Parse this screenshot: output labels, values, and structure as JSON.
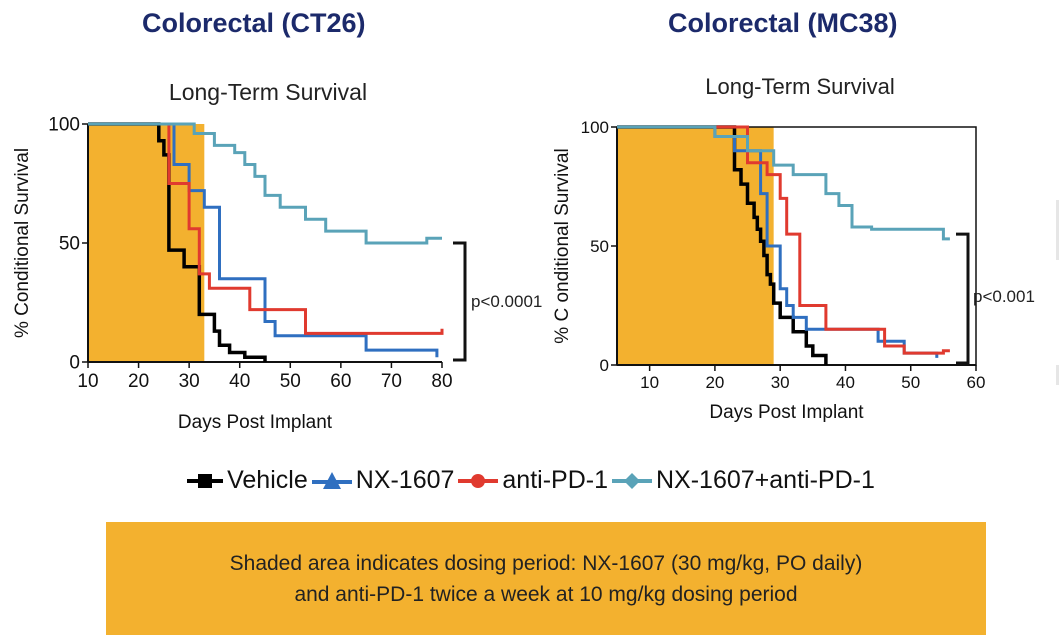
{
  "colors": {
    "title": "#1c2a6b",
    "shade": "#f3b12f",
    "vehicle": "#000000",
    "nx1607": "#2f6fc0",
    "antipd1": "#e03a2f",
    "combo": "#5aa3b8"
  },
  "legend": {
    "items": [
      {
        "label": "Vehicle",
        "marker": "square",
        "color": "#000000"
      },
      {
        "label": "NX-1607",
        "marker": "triangle",
        "color": "#2f6fc0"
      },
      {
        "label": "anti-PD-1",
        "marker": "circle",
        "color": "#e03a2f"
      },
      {
        "label": "NX-1607+anti-PD-1",
        "marker": "diamond",
        "color": "#5aa3b8"
      }
    ]
  },
  "note": {
    "line1": "Shaded area indicates dosing period: NX-1607 (30 mg/kg, PO daily)",
    "line2": "and anti-PD-1 twice a week at 10 mg/kg dosing period"
  },
  "chart_data": [
    {
      "type": "line",
      "panel_title": "Colorectal (CT26)",
      "title": "Long-Term Survival",
      "xlabel": "Days Post Implant",
      "ylabel": "% Conditional Survival",
      "xlim": [
        10,
        80
      ],
      "ylim": [
        0,
        100
      ],
      "xticks": [
        10,
        20,
        30,
        40,
        50,
        60,
        70,
        80
      ],
      "yticks": [
        0,
        50,
        100
      ],
      "shade": [
        10,
        33
      ],
      "significance": {
        "label": "p<0.0001",
        "y_range": [
          0,
          50
        ]
      },
      "series": [
        {
          "name": "Vehicle",
          "color": "#000000",
          "points": [
            [
              10,
              100
            ],
            [
              24,
              100
            ],
            [
              24,
              93
            ],
            [
              25,
              93
            ],
            [
              25,
              87
            ],
            [
              26,
              87
            ],
            [
              26,
              47
            ],
            [
              29,
              47
            ],
            [
              29,
              40
            ],
            [
              32,
              40
            ],
            [
              32,
              20
            ],
            [
              35,
              20
            ],
            [
              35,
              13
            ],
            [
              36,
              13
            ],
            [
              36,
              7
            ],
            [
              38,
              7
            ],
            [
              38,
              4
            ],
            [
              41,
              4
            ],
            [
              41,
              2
            ],
            [
              45,
              2
            ],
            [
              45,
              0
            ]
          ]
        },
        {
          "name": "NX-1607",
          "color": "#2f6fc0",
          "points": [
            [
              10,
              100
            ],
            [
              27,
              100
            ],
            [
              27,
              83
            ],
            [
              30,
              83
            ],
            [
              30,
              72
            ],
            [
              33,
              72
            ],
            [
              33,
              65
            ],
            [
              36,
              65
            ],
            [
              36,
              35
            ],
            [
              45,
              35
            ],
            [
              45,
              17
            ],
            [
              47,
              17
            ],
            [
              47,
              11
            ],
            [
              65,
              11
            ],
            [
              65,
              5
            ],
            [
              79,
              5
            ],
            [
              79,
              2
            ]
          ]
        },
        {
          "name": "anti-PD-1",
          "color": "#e03a2f",
          "points": [
            [
              10,
              100
            ],
            [
              26,
              100
            ],
            [
              26,
              75
            ],
            [
              30,
              75
            ],
            [
              30,
              56
            ],
            [
              32,
              56
            ],
            [
              32,
              37
            ],
            [
              34,
              37
            ],
            [
              34,
              31
            ],
            [
              42,
              31
            ],
            [
              42,
              22
            ],
            [
              53,
              22
            ],
            [
              53,
              12
            ],
            [
              80,
              12
            ],
            [
              80,
              14
            ]
          ]
        },
        {
          "name": "NX-1607+anti-PD-1",
          "color": "#5aa3b8",
          "points": [
            [
              10,
              100
            ],
            [
              31,
              100
            ],
            [
              31,
              96
            ],
            [
              35,
              96
            ],
            [
              35,
              91
            ],
            [
              39,
              91
            ],
            [
              39,
              88
            ],
            [
              41,
              88
            ],
            [
              41,
              83
            ],
            [
              43,
              83
            ],
            [
              43,
              78
            ],
            [
              45,
              78
            ],
            [
              45,
              70
            ],
            [
              48,
              70
            ],
            [
              48,
              65
            ],
            [
              53,
              65
            ],
            [
              53,
              60
            ],
            [
              57,
              60
            ],
            [
              57,
              55
            ],
            [
              65,
              55
            ],
            [
              65,
              50
            ],
            [
              77,
              50
            ],
            [
              77,
              52
            ],
            [
              80,
              52
            ]
          ]
        }
      ]
    },
    {
      "type": "line",
      "panel_title": "Colorectal (MC38)",
      "title": "Long-Term Survival",
      "xlabel": "Days Post Implant",
      "ylabel": "% C onditional  Survival",
      "xlim": [
        5,
        60
      ],
      "ylim": [
        0,
        100
      ],
      "xticks": [
        10,
        20,
        30,
        40,
        50,
        60
      ],
      "yticks": [
        0,
        50,
        100
      ],
      "shade": [
        5,
        29
      ],
      "significance": {
        "label": "p<0.001",
        "y_range": [
          0,
          55
        ]
      },
      "series": [
        {
          "name": "Vehicle",
          "color": "#000000",
          "points": [
            [
              5,
              100
            ],
            [
              23,
              100
            ],
            [
              23,
              82
            ],
            [
              24,
              82
            ],
            [
              24,
              76
            ],
            [
              25,
              76
            ],
            [
              25,
              68
            ],
            [
              26,
              68
            ],
            [
              26,
              62
            ],
            [
              26.5,
              62
            ],
            [
              26.5,
              57
            ],
            [
              27,
              57
            ],
            [
              27,
              52
            ],
            [
              27.5,
              52
            ],
            [
              27.5,
              46
            ],
            [
              28,
              46
            ],
            [
              28,
              38
            ],
            [
              28.5,
              38
            ],
            [
              28.5,
              34
            ],
            [
              29,
              34
            ],
            [
              29,
              26
            ],
            [
              30,
              26
            ],
            [
              30,
              20
            ],
            [
              32,
              20
            ],
            [
              32,
              14
            ],
            [
              34,
              14
            ],
            [
              34,
              8
            ],
            [
              35,
              8
            ],
            [
              35,
              4
            ],
            [
              37,
              4
            ],
            [
              37,
              0
            ]
          ]
        },
        {
          "name": "NX-1607",
          "color": "#2f6fc0",
          "points": [
            [
              5,
              100
            ],
            [
              20,
              100
            ],
            [
              20,
              96
            ],
            [
              23,
              96
            ],
            [
              23,
              90
            ],
            [
              27,
              90
            ],
            [
              27,
              72
            ],
            [
              28,
              72
            ],
            [
              28,
              50
            ],
            [
              30,
              50
            ],
            [
              30,
              32
            ],
            [
              31,
              32
            ],
            [
              31,
              25
            ],
            [
              32,
              25
            ],
            [
              32,
              20
            ],
            [
              34,
              20
            ],
            [
              34,
              15
            ],
            [
              45,
              15
            ],
            [
              45,
              10
            ],
            [
              49,
              10
            ],
            [
              49,
              5
            ],
            [
              54,
              5
            ],
            [
              54,
              3
            ]
          ]
        },
        {
          "name": "anti-PD-1",
          "color": "#e03a2f",
          "points": [
            [
              5,
              100
            ],
            [
              25,
              100
            ],
            [
              25,
              85
            ],
            [
              28,
              85
            ],
            [
              28,
              80
            ],
            [
              30,
              80
            ],
            [
              30,
              70
            ],
            [
              31,
              70
            ],
            [
              31,
              55
            ],
            [
              33,
              55
            ],
            [
              33,
              25
            ],
            [
              37,
              25
            ],
            [
              37,
              15
            ],
            [
              46,
              15
            ],
            [
              46,
              8
            ],
            [
              49,
              8
            ],
            [
              49,
              5
            ],
            [
              55,
              5
            ],
            [
              55,
              6
            ],
            [
              56,
              6
            ]
          ]
        },
        {
          "name": "NX-1607+anti-PD-1",
          "color": "#5aa3b8",
          "points": [
            [
              5,
              100
            ],
            [
              20,
              100
            ],
            [
              20,
              96
            ],
            [
              25,
              96
            ],
            [
              25,
              90
            ],
            [
              29,
              90
            ],
            [
              29,
              84
            ],
            [
              32,
              84
            ],
            [
              32,
              80
            ],
            [
              37,
              80
            ],
            [
              37,
              72
            ],
            [
              39,
              72
            ],
            [
              39,
              67
            ],
            [
              41,
              67
            ],
            [
              41,
              58
            ],
            [
              44,
              58
            ],
            [
              44,
              57
            ],
            [
              55,
              57
            ],
            [
              55,
              53
            ],
            [
              56,
              53
            ]
          ]
        }
      ]
    }
  ]
}
